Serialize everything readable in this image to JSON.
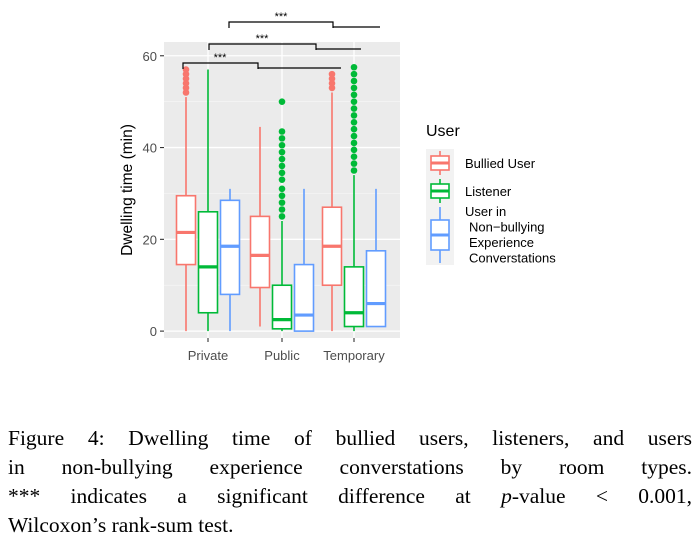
{
  "chart_data": {
    "type": "boxplot",
    "xlabel": "",
    "ylabel": "Dwelling time (min)",
    "ylim": [
      -1.5,
      63
    ],
    "y_ticks": [
      0,
      20,
      40,
      60
    ],
    "categories": [
      "Private",
      "Public",
      "Temporary"
    ],
    "legend": {
      "title": "User",
      "placement": "right",
      "entries": [
        {
          "label_lines": [
            "Bullied User"
          ]
        },
        {
          "label_lines": [
            "Listener"
          ]
        },
        {
          "label_lines": [
            "User in",
            "Non−bullying",
            "Experience",
            "Converstations"
          ]
        }
      ]
    },
    "series": [
      {
        "name": "Bullied User",
        "color": "#F8766D",
        "boxes": [
          {
            "min": 0,
            "q1": 14.5,
            "median": 21.5,
            "q3": 29.5,
            "max": 51,
            "outliers": [
              52,
              53,
              54,
              55,
              56,
              57
            ]
          },
          {
            "min": 1,
            "q1": 9.5,
            "median": 16.5,
            "q3": 25,
            "max": 44.5,
            "outliers": []
          },
          {
            "min": 0,
            "q1": 10,
            "median": 18.5,
            "q3": 27,
            "max": 52,
            "outliers": [
              53,
              54,
              55,
              56
            ]
          }
        ]
      },
      {
        "name": "Listener",
        "color": "#00BA38",
        "boxes": [
          {
            "min": 0,
            "q1": 4,
            "median": 14,
            "q3": 26,
            "max": 57,
            "outliers": []
          },
          {
            "min": 0,
            "q1": 0.5,
            "median": 2.5,
            "q3": 10,
            "max": 24,
            "outliers": [
              25,
              26.5,
              28,
              29.5,
              31,
              33,
              34.5,
              36,
              37.5,
              39,
              40.5,
              42,
              43.5,
              50
            ]
          },
          {
            "min": 0,
            "q1": 1,
            "median": 4,
            "q3": 14,
            "max": 34,
            "outliers": [
              35,
              36.5,
              38,
              39.5,
              41,
              42.5,
              44,
              45.5,
              47,
              48.5,
              50,
              51.5,
              53,
              54.5,
              56,
              57.5
            ]
          }
        ]
      },
      {
        "name": "User in Non−bullying Experience Converstations",
        "color": "#619CFF",
        "boxes": [
          {
            "min": 0,
            "q1": 8,
            "median": 18.5,
            "q3": 28.5,
            "max": 31,
            "outliers": []
          },
          {
            "min": 0,
            "q1": 0,
            "median": 3.5,
            "q3": 14.5,
            "max": 31,
            "outliers": []
          },
          {
            "min": 1,
            "q1": 1,
            "median": 6,
            "q3": 17.5,
            "max": 31,
            "outliers": []
          }
        ]
      }
    ],
    "significance": [
      {
        "label": "***",
        "from": "Private",
        "to": "Temporary"
      },
      {
        "label": "***",
        "from": "Private",
        "to": "Temporary"
      },
      {
        "label": "***",
        "from": "Private",
        "to": "Public"
      }
    ]
  },
  "caption": {
    "figure_label": "Figure 4:",
    "text_line1": "Dwelling time of bullied users, listeners, and users",
    "text_line2": "in non-bullying experience converstations by room types.",
    "text_line3_a": "*** indicates a significant difference at",
    "p_symbol": "p",
    "text_line3_b": "-value < 0.001,",
    "text_line4": "Wilcoxon’s rank-sum test."
  }
}
